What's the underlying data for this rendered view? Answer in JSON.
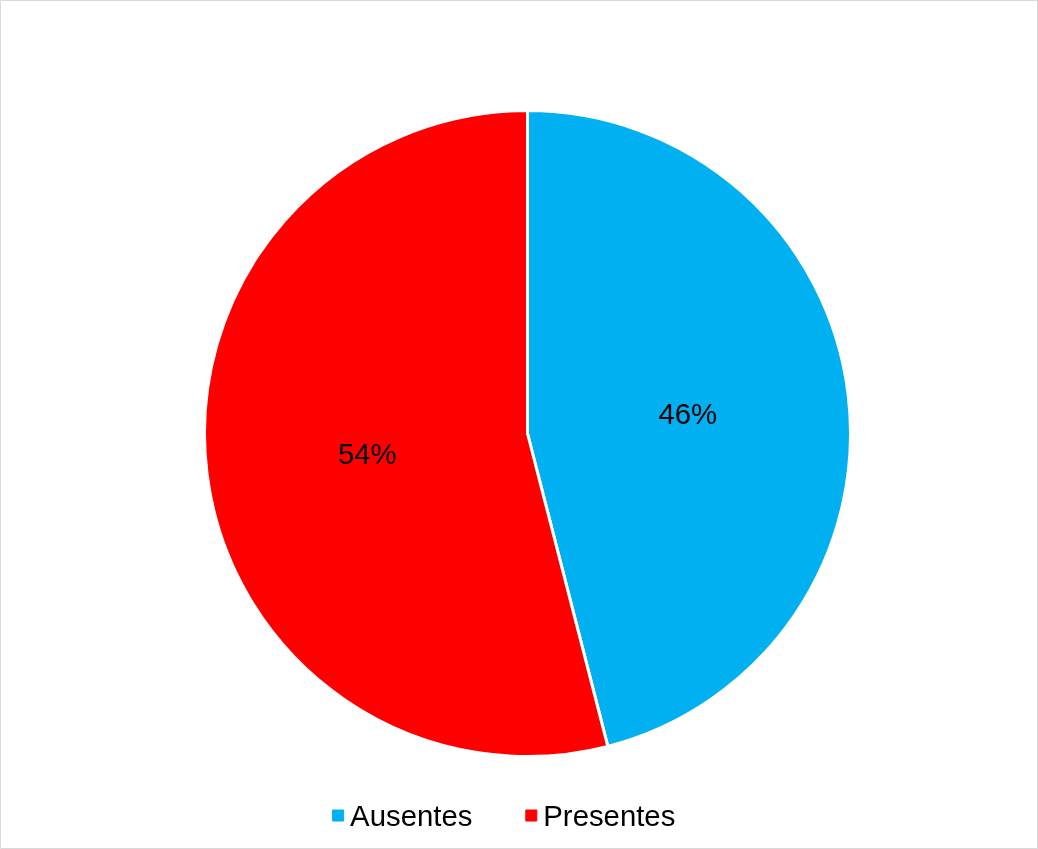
{
  "chart_data": {
    "type": "pie",
    "categories": [
      "Ausentes",
      "Presentes"
    ],
    "values": [
      46,
      54
    ],
    "colors": [
      "#00b0f0",
      "#ff0000"
    ],
    "value_labels": [
      "46%",
      "54%"
    ],
    "legend": "bottom"
  }
}
